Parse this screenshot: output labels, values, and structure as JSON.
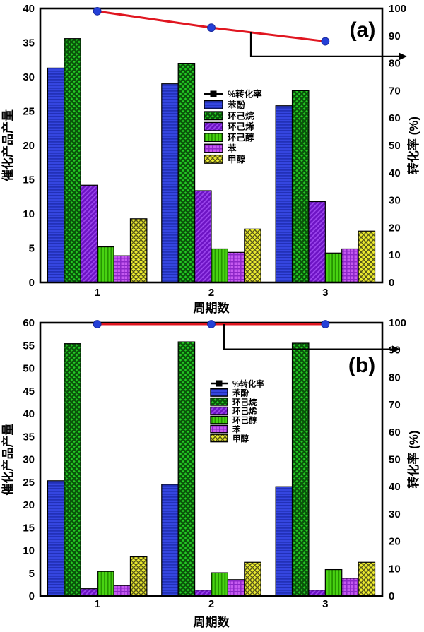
{
  "figure": {
    "background": "#ffffff",
    "panels": [
      "(a)",
      "(b)"
    ]
  },
  "chart_data": [
    {
      "type": "bar",
      "panel_label": "(a)",
      "categories": [
        "1",
        "2",
        "3"
      ],
      "xlabel": "周期数",
      "ylabel_left": "催化产品产量",
      "ylabel_right": "转化率 (%)",
      "ylim_left": [
        0,
        40
      ],
      "ytick_step_left": 5,
      "ylim_right": [
        0,
        100
      ],
      "ytick_step_right": 10,
      "grid": false,
      "legend_position": "inside-upper-center-left",
      "series": [
        {
          "name": "苯酚",
          "style": "bar",
          "axis": "left",
          "values": [
            31.3,
            29.0,
            25.8
          ],
          "color": "#3546e0",
          "hatch": "horizontal",
          "hatch_color": "#1e2cb0",
          "hatch_width": 1.5
        },
        {
          "name": "环己烷",
          "style": "bar",
          "axis": "left",
          "values": [
            35.6,
            32.0,
            28.0
          ],
          "color": "#24ca24",
          "hatch": "xhatch",
          "hatch_color": "#0a550a",
          "hatch_width": 2.4
        },
        {
          "name": "环己烯",
          "style": "bar",
          "axis": "left",
          "values": [
            14.2,
            13.4,
            11.8
          ],
          "color": "#9a44ec",
          "hatch": "diagonal",
          "hatch_color": "#6d14c4",
          "hatch_width": 2.8
        },
        {
          "name": "环己醇",
          "style": "bar",
          "axis": "left",
          "values": [
            5.2,
            4.9,
            4.3
          ],
          "color": "#49d312",
          "hatch": "vertical",
          "hatch_color": "#259400",
          "hatch_width": 1.9
        },
        {
          "name": "苯",
          "style": "bar",
          "axis": "left",
          "values": [
            3.9,
            4.4,
            4.9
          ],
          "color": "#c65af0",
          "hatch": "grid",
          "hatch_color": "#8d28c8",
          "hatch_width": 1.5
        },
        {
          "name": "甲醇",
          "style": "bar",
          "axis": "left",
          "values": [
            9.3,
            7.8,
            7.5
          ],
          "color": "#eaea2f",
          "hatch": "xhatch",
          "hatch_color": "#55551a",
          "hatch_width": 1.4
        },
        {
          "name": "%转化率",
          "style": "line",
          "axis": "right",
          "values": [
            99,
            93,
            88
          ],
          "color": "#e01620",
          "marker": "circle",
          "marker_color": "#2440d8"
        }
      ]
    },
    {
      "type": "bar",
      "panel_label": "(b)",
      "categories": [
        "1",
        "2",
        "3"
      ],
      "xlabel": "周期数",
      "ylabel_left": "催化产品产量",
      "ylabel_right": "转化率 (%)",
      "ylim_left": [
        0,
        60
      ],
      "ytick_step_left": 5,
      "ylim_right": [
        0,
        100
      ],
      "ytick_step_right": 10,
      "grid": false,
      "legend_position": "inside-middle-center-left",
      "series": [
        {
          "name": "苯酚",
          "style": "bar",
          "axis": "left",
          "values": [
            25.3,
            24.5,
            24.0
          ],
          "color": "#3546e0",
          "hatch": "horizontal",
          "hatch_color": "#1e2cb0",
          "hatch_width": 1.5
        },
        {
          "name": "环己烷",
          "style": "bar",
          "axis": "left",
          "values": [
            55.4,
            55.8,
            55.5
          ],
          "color": "#24ca24",
          "hatch": "xhatch",
          "hatch_color": "#0a550a",
          "hatch_width": 2.4
        },
        {
          "name": "环己烯",
          "style": "bar",
          "axis": "left",
          "values": [
            1.6,
            1.3,
            1.3
          ],
          "color": "#9a44ec",
          "hatch": "diagonal",
          "hatch_color": "#6d14c4",
          "hatch_width": 2.8
        },
        {
          "name": "环己醇",
          "style": "bar",
          "axis": "left",
          "values": [
            5.4,
            5.1,
            5.8
          ],
          "color": "#49d312",
          "hatch": "vertical",
          "hatch_color": "#259400",
          "hatch_width": 1.9
        },
        {
          "name": "苯",
          "style": "bar",
          "axis": "left",
          "values": [
            2.3,
            3.6,
            3.9
          ],
          "color": "#c65af0",
          "hatch": "grid",
          "hatch_color": "#8d28c8",
          "hatch_width": 1.5
        },
        {
          "name": "甲醇",
          "style": "bar",
          "axis": "left",
          "values": [
            8.6,
            7.4,
            7.4
          ],
          "color": "#eaea2f",
          "hatch": "xhatch",
          "hatch_color": "#55551a",
          "hatch_width": 1.4
        },
        {
          "name": "%转化率",
          "style": "line",
          "axis": "right",
          "values": [
            100,
            100,
            100
          ],
          "color": "#e01620",
          "marker": "circle",
          "marker_color": "#2440d8"
        }
      ]
    }
  ]
}
